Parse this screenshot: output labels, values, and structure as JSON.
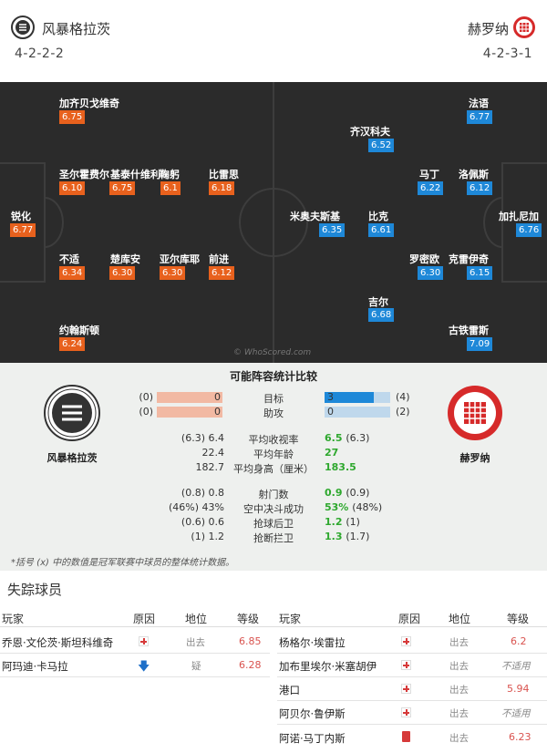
{
  "home": {
    "name": "风暴格拉茨",
    "formation": "4-2-2-2",
    "color": "#e8611d",
    "players": [
      {
        "name": "加齐贝戈维奇",
        "rating": "6.75"
      },
      {
        "name": "圣尔霍费尔",
        "rating": "6.10"
      },
      {
        "name": "基泰什维利",
        "rating": "6.75"
      },
      {
        "name": "鞠躬",
        "rating": "6.1"
      },
      {
        "name": "比雷思",
        "rating": "6.18"
      },
      {
        "name": "锐化",
        "rating": "6.77"
      },
      {
        "name": "不适",
        "rating": "6.34"
      },
      {
        "name": "楚库安",
        "rating": "6.30"
      },
      {
        "name": "亚尔库耶",
        "rating": "6.30"
      },
      {
        "name": "前进",
        "rating": "6.12"
      },
      {
        "name": "约翰斯顿",
        "rating": "6.24"
      }
    ]
  },
  "away": {
    "name": "赫罗纳",
    "formation": "4-2-3-1",
    "color": "#1e88d8",
    "players": [
      {
        "name": "法语",
        "rating": "6.77"
      },
      {
        "name": "齐汉科夫",
        "rating": "6.52"
      },
      {
        "name": "马丁",
        "rating": "6.22"
      },
      {
        "name": "洛佩斯",
        "rating": "6.12"
      },
      {
        "name": "米奥夫斯基",
        "rating": "6.35"
      },
      {
        "name": "比克",
        "rating": "6.61"
      },
      {
        "name": "加扎尼加",
        "rating": "6.76"
      },
      {
        "name": "罗密欧",
        "rating": "6.30"
      },
      {
        "name": "克雷伊奇",
        "rating": "6.15"
      },
      {
        "name": "吉尔",
        "rating": "6.68"
      },
      {
        "name": "古铁雷斯",
        "rating": "7.09"
      }
    ]
  },
  "watermark": "© WhoScored.com",
  "comparison": {
    "title": "可能阵容统计比较",
    "rows": [
      {
        "label": "目标",
        "home": "0",
        "home_prev": "(0)",
        "away": "3",
        "away_prev": "(4)",
        "home_frac": 0.0,
        "away_frac": 0.75
      },
      {
        "label": "助攻",
        "home": "0",
        "home_prev": "(0)",
        "away": "0",
        "away_prev": "(2)",
        "home_frac": 0.0,
        "away_frac": 0.0
      }
    ],
    "stats_a": [
      {
        "label": "平均收视率",
        "home": "(6.3) 6.4",
        "away": "6.5",
        "away_prev": "(6.3)"
      },
      {
        "label": "平均年龄",
        "home": "22.4",
        "away": "27",
        "away_prev": ""
      },
      {
        "label": "平均身高（厘米）",
        "home": "182.7",
        "away": "183.5",
        "away_prev": ""
      }
    ],
    "stats_b": [
      {
        "label": "射门数",
        "home": "(0.8) 0.8",
        "away": "0.9",
        "away_prev": "(0.9)"
      },
      {
        "label": "空中决斗成功",
        "home": "(46%) 43%",
        "away": "53%",
        "away_prev": "(48%)"
      },
      {
        "label": "抢球后卫",
        "home": "(0.6) 0.6",
        "away": "1.2",
        "away_prev": "(1)"
      },
      {
        "label": "抢断拦卫",
        "home": "(1) 1.2",
        "away": "1.3",
        "away_prev": "(1.7)"
      }
    ],
    "note": "*括号 (x) 中的数值是冠军联赛中球员的整体统计数据。"
  },
  "missing": {
    "title": "失踪球员",
    "headers": {
      "player": "玩家",
      "reason": "原因",
      "position": "地位",
      "grade": "等级"
    },
    "home": [
      {
        "player": "乔恩·文伦茨·斯坦科维奇",
        "reason": "injury-icon",
        "position": "出去",
        "grade": "6.85"
      },
      {
        "player": "阿玛迪·卡马拉",
        "reason": "doubt-icon",
        "position": "疑",
        "grade": "6.28"
      }
    ],
    "away": [
      {
        "player": "杨格尔·埃雷拉",
        "reason": "injury-icon",
        "position": "出去",
        "grade": "6.2"
      },
      {
        "player": "加布里埃尔·米塞胡伊",
        "reason": "injury-icon",
        "position": "出去",
        "grade": "不适用"
      },
      {
        "player": "港口",
        "reason": "injury-icon",
        "position": "出去",
        "grade": "5.94"
      },
      {
        "player": "阿贝尔·鲁伊斯",
        "reason": "injury-icon",
        "position": "出去",
        "grade": "不适用"
      },
      {
        "player": "阿诺·马丁内斯",
        "reason": "red-card-icon",
        "position": "出去",
        "grade": "6.23"
      }
    ]
  }
}
